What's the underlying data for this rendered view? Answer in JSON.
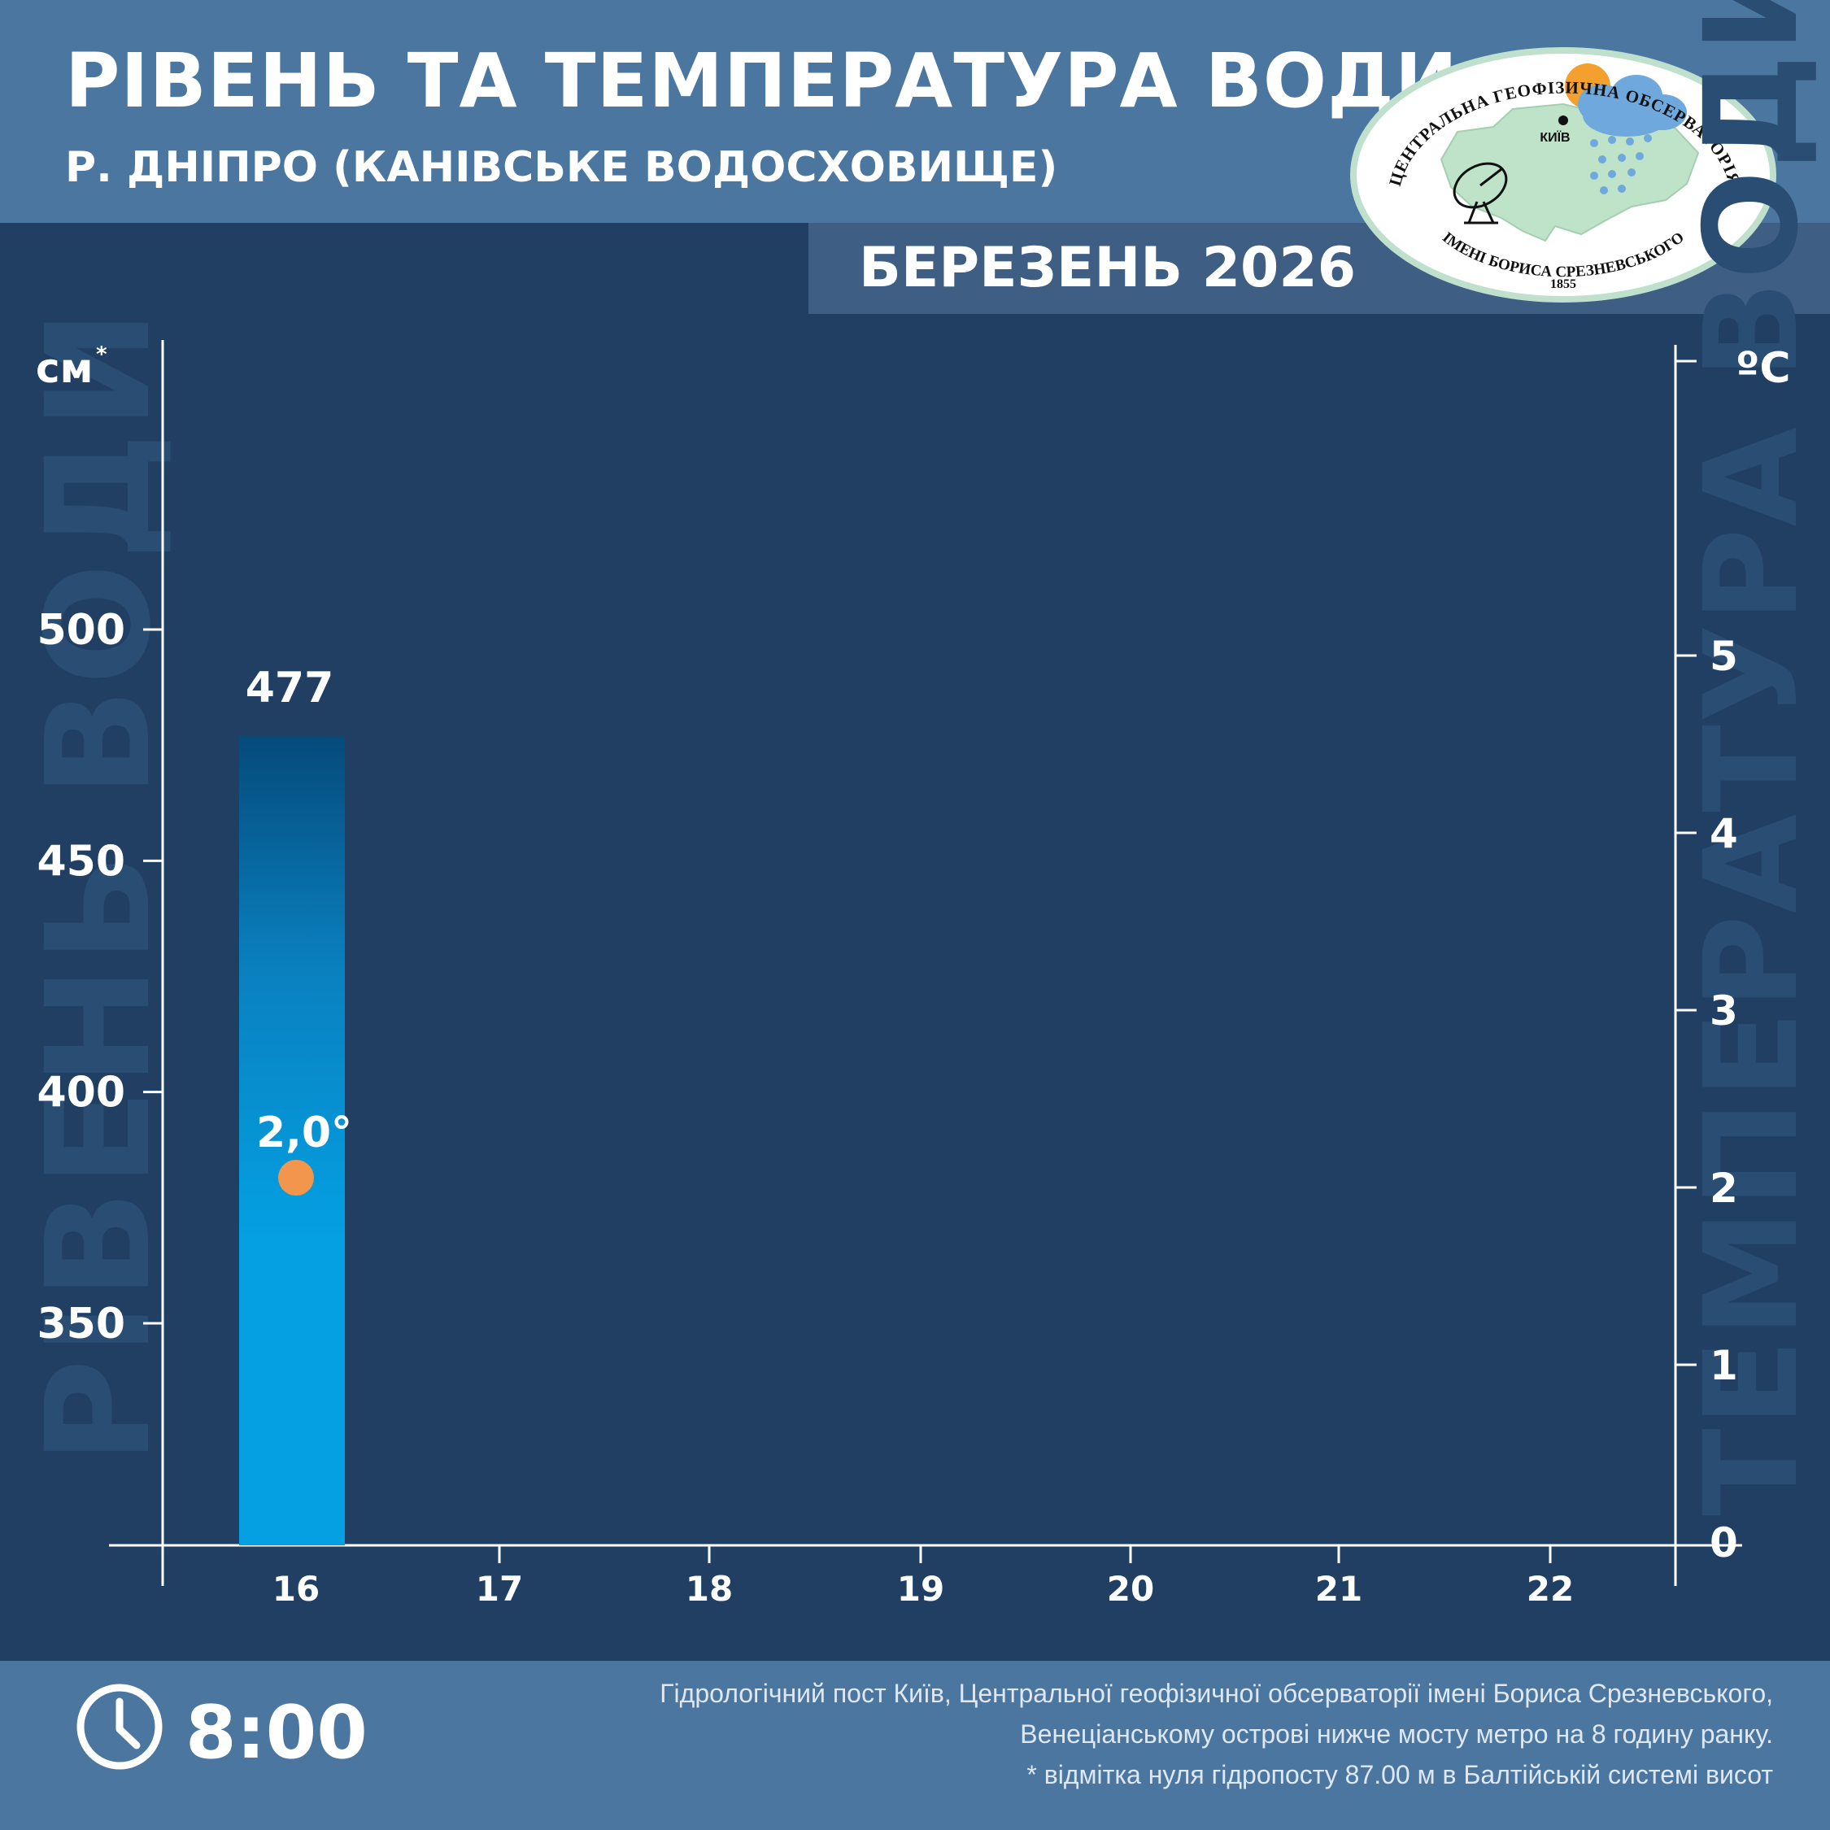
{
  "header": {
    "title": "РІВЕНЬ ТА ТЕМПЕРАТУРА ВОДИ",
    "subtitle": "Р. ДНІПРО (КАНІВСЬКЕ ВОДОСХОВИЩЕ)",
    "month": "БЕРЕЗЕНЬ 2026"
  },
  "logo": {
    "arc_top": "ЦЕНТРАЛЬНА ГЕОФІЗИЧНА ОБСЕРВАТОРІЯ",
    "arc_bottom": "ІМЕНІ БОРИСА СРЕЗНЕВСЬКОГО",
    "year": "1855",
    "city": "КИЇВ"
  },
  "chart_data": {
    "type": "bar",
    "categories": [
      "16",
      "17",
      "18",
      "19",
      "20",
      "21",
      "22"
    ],
    "level_values": [
      477
    ],
    "temperature_values": [
      2.0
    ],
    "level_labels": [
      "477"
    ],
    "temperature_labels": [
      "2,0°"
    ],
    "left_axis": {
      "unit": "см",
      "unit_mark": "*",
      "watermark": "РІВЕНЬ ВОДИ",
      "ticks": [
        350,
        400,
        450,
        500
      ],
      "ylim": [
        302,
        500
      ]
    },
    "right_axis": {
      "unit": "ºC",
      "watermark": "ТЕМПЕРАТУРА ВОДИ",
      "ticks": [
        0,
        1,
        2,
        3,
        4,
        5
      ],
      "ylim": [
        0,
        5
      ]
    },
    "colors": {
      "bar_top": "#054a7a",
      "bar_mid": "#0a7fbe",
      "bar_bottom": "#04a0e2",
      "point": "#f3964d",
      "background": "#203f63"
    }
  },
  "footer": {
    "time": "8:00",
    "note_line1": "Гідрологічний пост Київ, Центральної геофізичної обсерваторії імені Бориса Срезневського,",
    "note_line2": "Венеціанському острові нижче мосту метро  на 8 годину ранку.",
    "note_line3": "* відмітка нуля гідропосту 87.00 м в Балтійській системі висот"
  }
}
